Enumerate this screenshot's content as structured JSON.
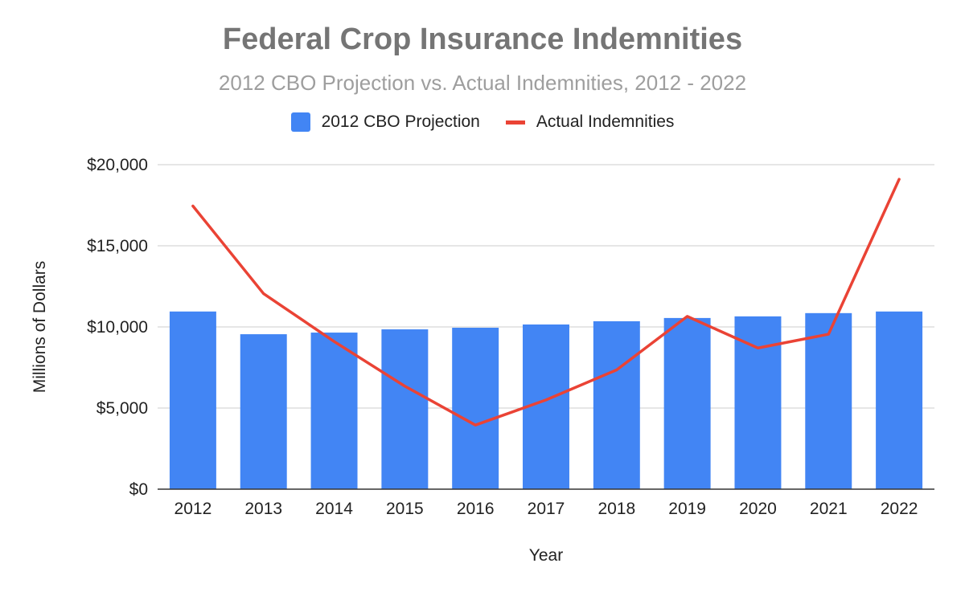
{
  "chart_data": {
    "type": "bar",
    "title": "Federal Crop Insurance Indemnities",
    "subtitle": "2012 CBO Projection vs. Actual Indemnities, 2012 - 2022",
    "xlabel": "Year",
    "ylabel": "Millions of Dollars",
    "categories": [
      "2012",
      "2013",
      "2014",
      "2015",
      "2016",
      "2017",
      "2018",
      "2019",
      "2020",
      "2021",
      "2022"
    ],
    "series": [
      {
        "name": "2012 CBO Projection",
        "type": "bar",
        "color": "#4285f4",
        "values": [
          10950,
          9550,
          9650,
          9850,
          9950,
          10150,
          10350,
          10550,
          10650,
          10850,
          10950
        ]
      },
      {
        "name": "Actual Indemnities",
        "type": "line",
        "color": "#ea4335",
        "values": [
          17450,
          12050,
          9100,
          6350,
          3950,
          5500,
          7350,
          10650,
          8700,
          9550,
          19100
        ]
      }
    ],
    "ylim": [
      0,
      20000
    ],
    "yticks": [
      0,
      5000,
      10000,
      15000,
      20000
    ],
    "ytick_labels": [
      "$0",
      "$5,000",
      "$10,000",
      "$15,000",
      "$20,000"
    ],
    "grid": true,
    "legend_position": "top"
  }
}
